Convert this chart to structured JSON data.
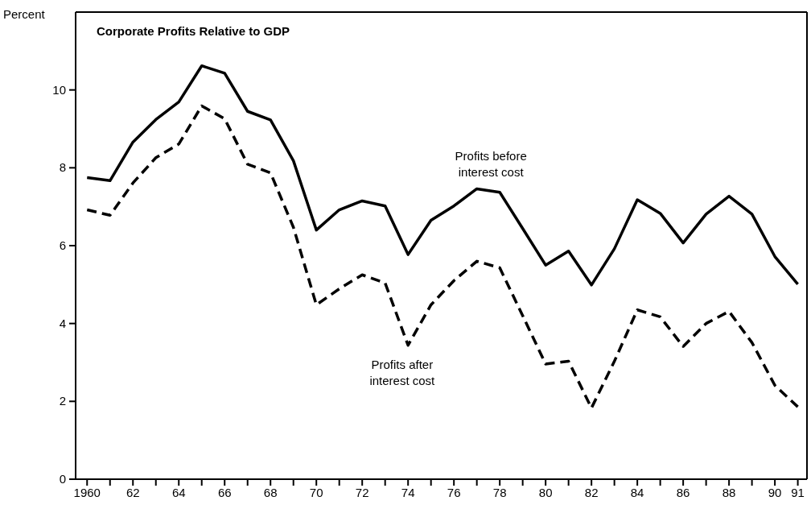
{
  "chart_data": {
    "type": "line",
    "title": "Corporate Profits Relative to GDP",
    "ylabel": "Percent",
    "x": [
      1960,
      1961,
      1962,
      1963,
      1964,
      1965,
      1966,
      1967,
      1968,
      1969,
      1970,
      1971,
      1972,
      1973,
      1974,
      1975,
      1976,
      1977,
      1978,
      1979,
      1980,
      1981,
      1982,
      1983,
      1984,
      1985,
      1986,
      1987,
      1988,
      1989,
      1990,
      1991
    ],
    "series": [
      {
        "name": "Profits before interest cost",
        "color": "#000000",
        "line_style": "solid",
        "values": [
          7.75,
          7.67,
          8.66,
          9.24,
          9.69,
          10.62,
          10.43,
          9.45,
          9.23,
          8.18,
          6.4,
          6.92,
          7.15,
          7.02,
          5.77,
          6.65,
          7.02,
          7.46,
          7.37,
          6.44,
          5.5,
          5.86,
          4.99,
          5.92,
          7.18,
          6.83,
          6.07,
          6.81,
          7.27,
          6.81,
          5.72,
          5.01
        ]
      },
      {
        "name": "Profits after interest cost",
        "color": "#000000",
        "line_style": "dashed",
        "values": [
          6.92,
          6.78,
          7.61,
          8.26,
          8.61,
          9.59,
          9.26,
          8.09,
          7.87,
          6.47,
          4.48,
          4.89,
          5.25,
          5.04,
          3.44,
          4.48,
          5.1,
          5.6,
          5.43,
          4.2,
          2.96,
          3.03,
          1.83,
          3.03,
          4.35,
          4.17,
          3.41,
          4.0,
          4.31,
          3.51,
          2.41,
          1.86
        ]
      }
    ],
    "xlim": [
      1959.5,
      1991.4
    ],
    "ylim": [
      0,
      12
    ],
    "xticks": [
      {
        "value": 1960,
        "label": "1960"
      },
      {
        "value": 1961,
        "label": null
      },
      {
        "value": 1962,
        "label": "62"
      },
      {
        "value": 1963,
        "label": null
      },
      {
        "value": 1964,
        "label": "64"
      },
      {
        "value": 1965,
        "label": null
      },
      {
        "value": 1966,
        "label": "66"
      },
      {
        "value": 1967,
        "label": null
      },
      {
        "value": 1968,
        "label": "68"
      },
      {
        "value": 1969,
        "label": null
      },
      {
        "value": 1970,
        "label": "70"
      },
      {
        "value": 1971,
        "label": null
      },
      {
        "value": 1972,
        "label": "72"
      },
      {
        "value": 1973,
        "label": null
      },
      {
        "value": 1974,
        "label": "74"
      },
      {
        "value": 1975,
        "label": null
      },
      {
        "value": 1976,
        "label": "76"
      },
      {
        "value": 1977,
        "label": null
      },
      {
        "value": 1978,
        "label": "78"
      },
      {
        "value": 1979,
        "label": null
      },
      {
        "value": 1980,
        "label": "80"
      },
      {
        "value": 1981,
        "label": null
      },
      {
        "value": 1982,
        "label": "82"
      },
      {
        "value": 1983,
        "label": null
      },
      {
        "value": 1984,
        "label": "84"
      },
      {
        "value": 1985,
        "label": null
      },
      {
        "value": 1986,
        "label": "86"
      },
      {
        "value": 1987,
        "label": null
      },
      {
        "value": 1988,
        "label": "88"
      },
      {
        "value": 1989,
        "label": null
      },
      {
        "value": 1990,
        "label": "90"
      },
      {
        "value": 1991,
        "label": "91"
      }
    ],
    "yticks": [
      0,
      2,
      4,
      6,
      8,
      10
    ],
    "grid": false,
    "legend": false,
    "marker": "none"
  }
}
